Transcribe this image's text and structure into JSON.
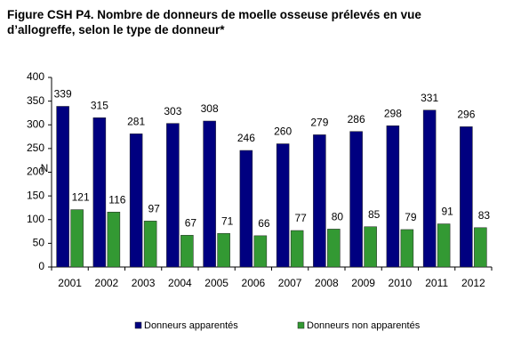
{
  "chart_data": {
    "type": "bar",
    "title": "Figure CSH P4. Nombre de donneurs de moelle osseuse prélevés en vue d’allogreffe, selon le type de donneur*",
    "y_label": "N",
    "categories": [
      "2001",
      "2002",
      "2003",
      "2004",
      "2005",
      "2006",
      "2007",
      "2008",
      "2009",
      "2010",
      "2011",
      "2012"
    ],
    "series": [
      {
        "name": "Donneurs apparentés",
        "color": "#000080",
        "values": [
          339,
          315,
          281,
          303,
          308,
          246,
          260,
          279,
          286,
          298,
          331,
          296
        ]
      },
      {
        "name": "Donneurs non apparentés",
        "color": "#339933",
        "values": [
          121,
          116,
          97,
          67,
          71,
          66,
          77,
          80,
          85,
          79,
          91,
          83
        ]
      }
    ],
    "ylim": [
      0,
      400
    ],
    "yticks": [
      0,
      50,
      100,
      150,
      200,
      250,
      300,
      350,
      400
    ],
    "grid": false,
    "legend": "bottom"
  }
}
